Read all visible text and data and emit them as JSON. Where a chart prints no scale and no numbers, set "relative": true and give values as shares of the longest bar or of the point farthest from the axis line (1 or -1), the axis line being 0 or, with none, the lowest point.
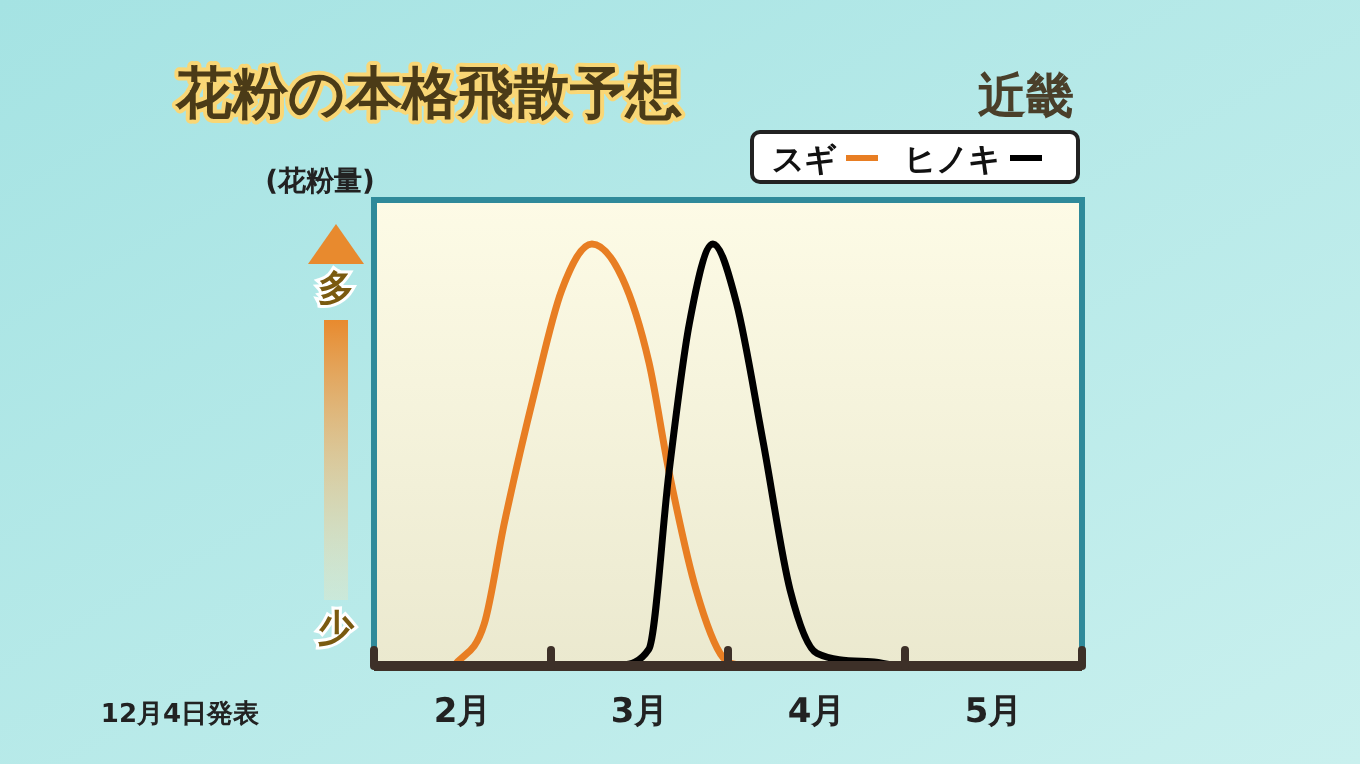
{
  "chart_data": {
    "type": "line",
    "title": "花粉の本格飛散予想",
    "subtitle": "近畿",
    "ylabel": "(花粉量)",
    "relative": true,
    "legend": "top right",
    "line_style": "solid",
    "xlim": [
      1,
      5
    ],
    "xticks": [
      {
        "value": 1,
        "label": null
      },
      {
        "value": 1.5,
        "label": "2月"
      },
      {
        "value": 2,
        "label": null
      },
      {
        "value": 2.5,
        "label": "3月"
      },
      {
        "value": 3,
        "label": null
      },
      {
        "value": 3.5,
        "label": "4月"
      },
      {
        "value": 4,
        "label": null
      },
      {
        "value": 4.5,
        "label": "5月"
      },
      {
        "value": 5,
        "label": null
      }
    ],
    "series": [
      {
        "name": "スギ",
        "color": "#e87e23",
        "x": [
          1.452,
          1.623,
          1.737,
          1.908,
          2.06,
          2.231,
          2.402,
          2.553,
          2.667,
          2.82,
          2.972,
          3.085
        ],
        "values": [
          0,
          0.1,
          0.34,
          0.65,
          0.89,
          1,
          0.92,
          0.72,
          0.46,
          0.18,
          0.02,
          0
        ]
      },
      {
        "name": "ヒノキ",
        "color": "#000000",
        "x": [
          2.364,
          2.553,
          2.667,
          2.781,
          2.915,
          3.048,
          3.199,
          3.351,
          3.503,
          3.807,
          3.959
        ],
        "values": [
          0,
          0.04,
          0.46,
          0.81,
          1,
          0.86,
          0.53,
          0.18,
          0.03,
          0.01,
          0
        ]
      }
    ],
    "annotations": [
      "多",
      "少",
      "12月4日発表"
    ]
  }
}
